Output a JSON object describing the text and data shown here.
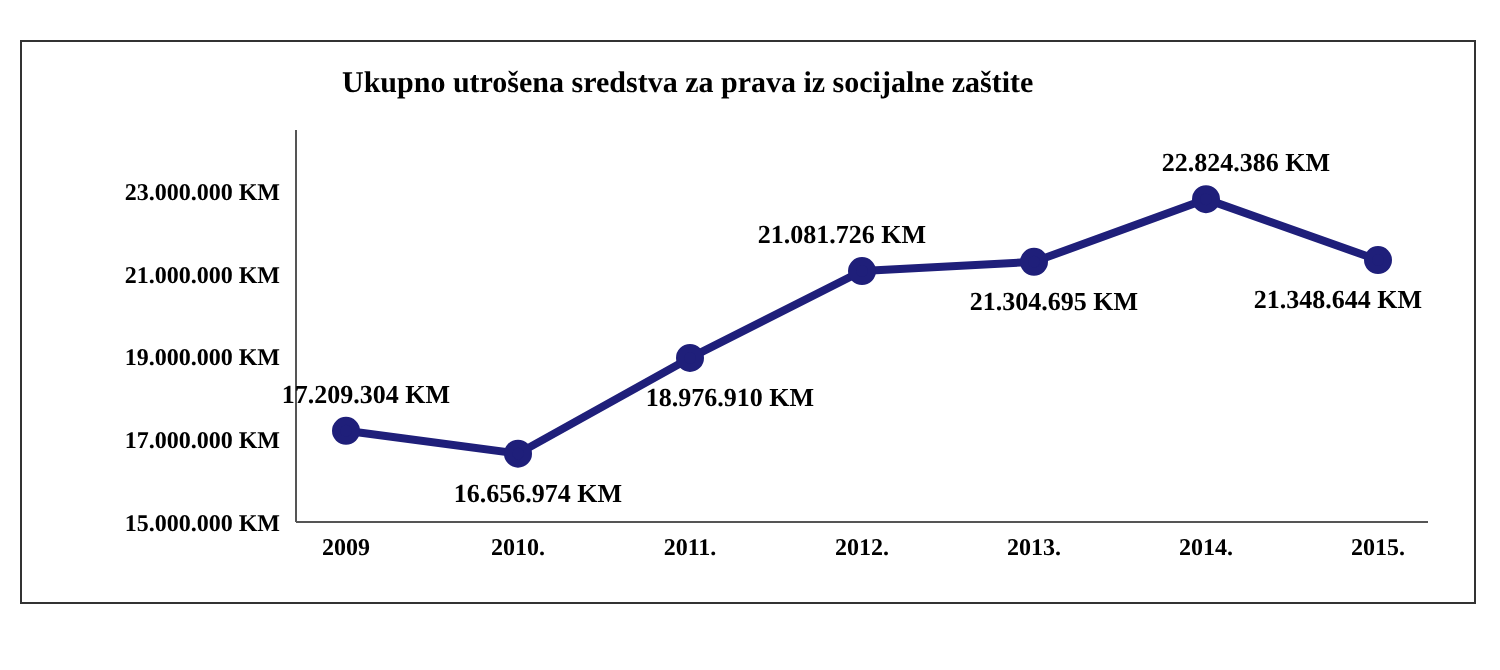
{
  "chart_data": {
    "type": "line",
    "title": "Ukupno utrošena sredstva za prava iz socijalne zaštite",
    "categories": [
      "2009",
      "2010.",
      "2011.",
      "2012.",
      "2013.",
      "2014.",
      "2015."
    ],
    "series": [
      {
        "color": "#1f1f7a",
        "values": [
          17209304,
          16656974,
          18976910,
          21081726,
          21304695,
          22824386,
          21348644
        ],
        "value_labels": [
          "17.209.304 KM",
          "16.656.974 KM",
          "18.976.910 KM",
          "21.081.726 KM",
          "21.304.695 KM",
          "22.824.386 KM",
          "21.348.644 KM"
        ]
      }
    ],
    "ylim": [
      15000000,
      24500000
    ],
    "yticks": [
      {
        "value": 15000000,
        "label": "15.000.000 KM"
      },
      {
        "value": 17000000,
        "label": "17.000.000 KM"
      },
      {
        "value": 19000000,
        "label": "19.000.000 KM"
      },
      {
        "value": 21000000,
        "label": "21.000.000 KM"
      },
      {
        "value": 23000000,
        "label": "23.000.000 KM"
      }
    ],
    "grid": false,
    "legend": false,
    "marker": "circle",
    "line_style": "solid"
  }
}
